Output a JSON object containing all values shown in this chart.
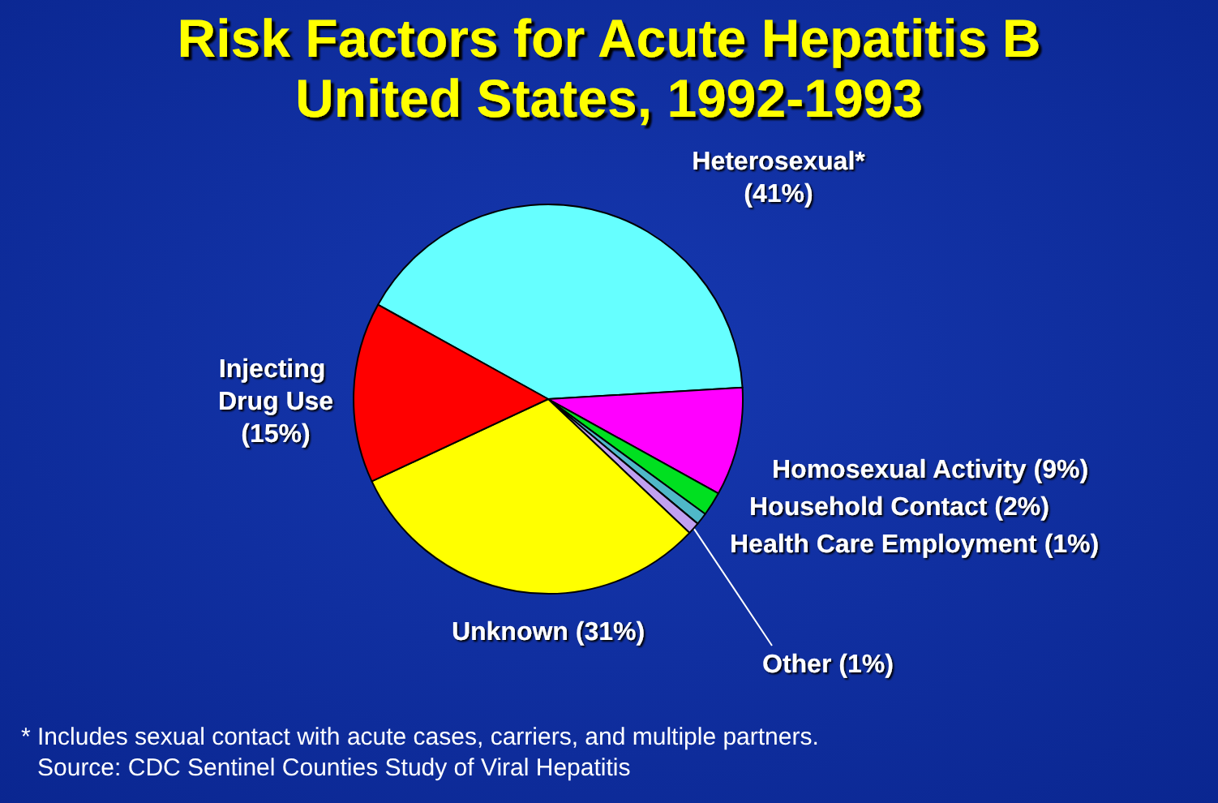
{
  "chart_data": {
    "type": "pie",
    "title": "Risk Factors for Acute Hepatitis B",
    "subtitle": "United States, 1992-1993",
    "categories": [
      "Heterosexual*",
      "Homosexual Activity",
      "Household Contact",
      "Health Care Employment",
      "Other",
      "Unknown",
      "Injecting Drug Use"
    ],
    "values": [
      41,
      9,
      2,
      1,
      1,
      31,
      15
    ],
    "value_labels": [
      "(41%)",
      "(9%)",
      "(2%)",
      "(1%)",
      "(1%)",
      "(31%)",
      "(15%)"
    ],
    "colors": [
      "#66ffff",
      "#ff00ff",
      "#00e020",
      "#4fb8c8",
      "#c0a0f0",
      "#ffff00",
      "#ff0000"
    ],
    "annotations": [
      "* Includes sexual contact with acute cases, carriers, and multiple partners.",
      "Source: CDC Sentinel Counties Study of Viral Hepatitis"
    ]
  }
}
